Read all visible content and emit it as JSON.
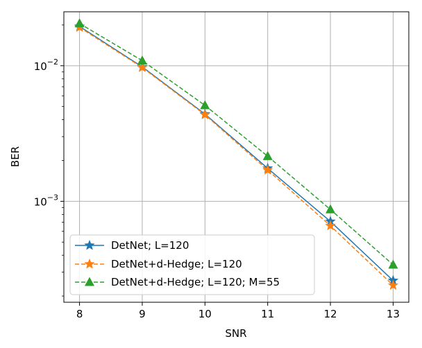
{
  "chart_data": {
    "type": "line",
    "title": "",
    "xlabel": "SNR",
    "ylabel": "BER",
    "yscale": "log",
    "grid": true,
    "legend_position": "lower-left",
    "xlim": [
      7.75,
      13.25
    ],
    "ylim": [
      0.00018,
      0.025
    ],
    "x_ticks": [
      8,
      9,
      10,
      11,
      12,
      13
    ],
    "x_tick_labels": [
      "8",
      "9",
      "10",
      "11",
      "12",
      "13"
    ],
    "y_major_ticks": [
      {
        "value": 0.01,
        "base": "10",
        "exp": "−2"
      },
      {
        "value": 0.001,
        "base": "10",
        "exp": "−3"
      }
    ],
    "x": [
      8,
      9,
      10,
      11,
      12,
      13
    ],
    "series": [
      {
        "name": "DetNet; L=120",
        "color": "#1f77b4",
        "dash": "solid",
        "marker": "star",
        "values": [
          0.0195,
          0.0098,
          0.0044,
          0.00175,
          0.00071,
          0.00026
        ]
      },
      {
        "name": "DetNet+d-Hedge; L=120",
        "color": "#ff7f0e",
        "dash": "dashed",
        "marker": "star",
        "values": [
          0.0192,
          0.0097,
          0.00435,
          0.0017,
          0.00066,
          0.00024
        ]
      },
      {
        "name": "DetNet+d-Hedge; L=120; M=55",
        "color": "#2ca02c",
        "dash": "dashed",
        "marker": "triangle",
        "values": [
          0.0205,
          0.0109,
          0.0051,
          0.00215,
          0.00087,
          0.00034
        ]
      }
    ]
  }
}
